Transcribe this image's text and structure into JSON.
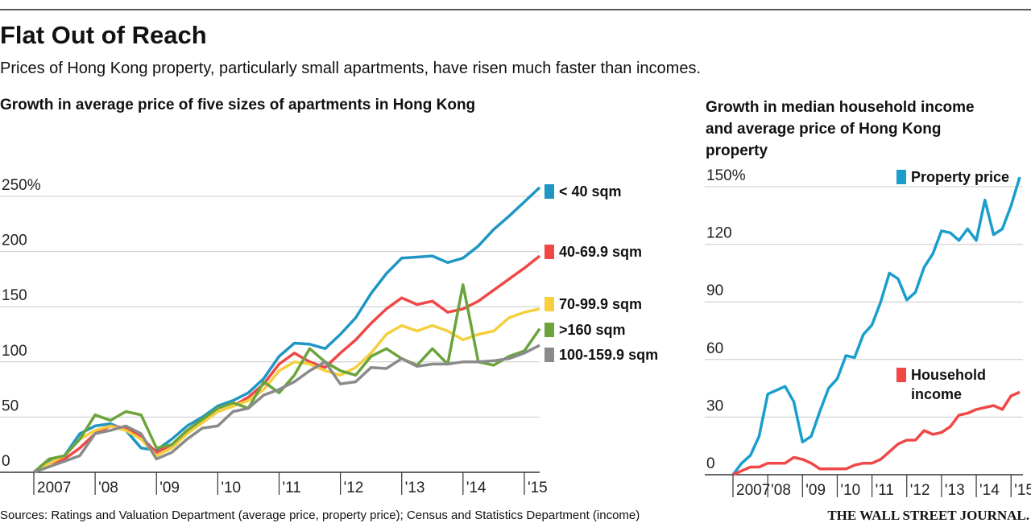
{
  "header": {
    "title": "Flat Out of Reach",
    "subtitle": "Prices of Hong Kong property, particularly small apartments, have risen much faster than incomes."
  },
  "footer": {
    "source": "Sources: Ratings and Valuation Department (average price, property price); Census and Statistics Department (income)",
    "credit": "THE WALL STREET JOURNAL."
  },
  "chart_data": [
    {
      "type": "line",
      "title": "Growth in average price of five sizes of apartments in Hong Kong",
      "x": [
        2007,
        2007.25,
        2007.5,
        2007.75,
        2008,
        2008.25,
        2008.5,
        2008.75,
        2009,
        2009.25,
        2009.5,
        2009.75,
        2010,
        2010.25,
        2010.5,
        2010.75,
        2011,
        2011.25,
        2011.5,
        2011.75,
        2012,
        2012.25,
        2012.5,
        2012.75,
        2013,
        2013.25,
        2013.5,
        2013.75,
        2014,
        2014.25,
        2014.5,
        2014.75,
        2015,
        2015.25
      ],
      "xlim": [
        2007,
        2015.25
      ],
      "xticks": [
        {
          "value": 2007,
          "label": "2007"
        },
        {
          "value": 2008,
          "label": "'08"
        },
        {
          "value": 2009,
          "label": "'09"
        },
        {
          "value": 2010,
          "label": "'10"
        },
        {
          "value": 2011,
          "label": "'11"
        },
        {
          "value": 2012,
          "label": "'12"
        },
        {
          "value": 2013,
          "label": "'13"
        },
        {
          "value": 2014,
          "label": "'14"
        },
        {
          "value": 2015,
          "label": "'15"
        }
      ],
      "ylim": [
        0,
        250
      ],
      "yticks": [
        0,
        50,
        100,
        150,
        200,
        {
          "value": 250,
          "label": "250%"
        }
      ],
      "grid": true,
      "series": [
        {
          "name": "< 40 sqm",
          "color": "#1f96c3",
          "values": [
            0,
            10,
            15,
            35,
            42,
            44,
            38,
            22,
            20,
            30,
            42,
            50,
            60,
            65,
            72,
            85,
            105,
            117,
            116,
            112,
            125,
            140,
            162,
            180,
            194,
            195,
            196,
            190,
            194,
            205,
            220,
            232,
            245,
            258
          ]
        },
        {
          "name": "40-69.9 sqm",
          "color": "#f04848",
          "values": [
            0,
            8,
            12,
            22,
            35,
            42,
            40,
            32,
            18,
            25,
            38,
            45,
            55,
            60,
            68,
            80,
            98,
            108,
            100,
            95,
            108,
            120,
            135,
            148,
            158,
            152,
            155,
            145,
            148,
            155,
            165,
            175,
            185,
            196
          ]
        },
        {
          "name": "70-99.9 sqm",
          "color": "#f5cf3c",
          "values": [
            0,
            8,
            15,
            30,
            38,
            42,
            38,
            30,
            15,
            22,
            35,
            45,
            55,
            60,
            65,
            75,
            92,
            100,
            98,
            92,
            88,
            95,
            108,
            125,
            133,
            128,
            133,
            128,
            120,
            125,
            128,
            140,
            145,
            148
          ]
        },
        {
          "name": ">160 sqm",
          "color": "#6ca43c",
          "values": [
            0,
            12,
            15,
            30,
            52,
            47,
            55,
            52,
            22,
            25,
            38,
            48,
            58,
            63,
            58,
            82,
            72,
            88,
            112,
            100,
            92,
            88,
            105,
            112,
            103,
            97,
            112,
            98,
            170,
            100,
            97,
            105,
            110,
            130
          ]
        },
        {
          "name": "100-159.9 sqm",
          "color": "#8a8a8a",
          "values": [
            0,
            5,
            10,
            15,
            35,
            38,
            42,
            35,
            12,
            18,
            30,
            40,
            42,
            55,
            58,
            70,
            75,
            82,
            92,
            100,
            80,
            82,
            95,
            94,
            103,
            96,
            98,
            98,
            100,
            100,
            101,
            103,
            108,
            115
          ]
        }
      ]
    },
    {
      "type": "line",
      "title": "Growth in median household income and average price of Hong Kong property",
      "x": [
        2007,
        2007.25,
        2007.5,
        2007.75,
        2008,
        2008.25,
        2008.5,
        2008.75,
        2009,
        2009.25,
        2009.5,
        2009.75,
        2010,
        2010.25,
        2010.5,
        2010.75,
        2011,
        2011.25,
        2011.5,
        2011.75,
        2012,
        2012.25,
        2012.5,
        2012.75,
        2013,
        2013.25,
        2013.5,
        2013.75,
        2014,
        2014.25,
        2014.5,
        2014.75,
        2015,
        2015.25
      ],
      "xlim": [
        2007,
        2015.25
      ],
      "xticks": [
        {
          "value": 2007,
          "label": "2007"
        },
        {
          "value": 2008,
          "label": "'08"
        },
        {
          "value": 2009,
          "label": "'09"
        },
        {
          "value": 2010,
          "label": "'10"
        },
        {
          "value": 2011,
          "label": "'11"
        },
        {
          "value": 2012,
          "label": "'12"
        },
        {
          "value": 2013,
          "label": "'13"
        },
        {
          "value": 2014,
          "label": "'14"
        },
        {
          "value": 2015,
          "label": "'15"
        }
      ],
      "ylim": [
        0,
        150
      ],
      "yticks": [
        0,
        30,
        60,
        90,
        120,
        {
          "value": 150,
          "label": "150%"
        }
      ],
      "grid": true,
      "series": [
        {
          "name": "Property price",
          "color": "#1a9fcc",
          "values": [
            0,
            6,
            10,
            20,
            42,
            44,
            46,
            38,
            17,
            20,
            33,
            45,
            50,
            62,
            61,
            73,
            78,
            90,
            105,
            102,
            91,
            95,
            108,
            115,
            127,
            126,
            122,
            128,
            122,
            143,
            125,
            128,
            140,
            155
          ]
        },
        {
          "name": "Household income",
          "color": "#f04848",
          "values": [
            0,
            2,
            4,
            4,
            6,
            6,
            6,
            9,
            8,
            6,
            3,
            3,
            3,
            3,
            5,
            6,
            6,
            8,
            12,
            16,
            18,
            18,
            23,
            21,
            22,
            25,
            31,
            32,
            34,
            35,
            36,
            34,
            41,
            43
          ]
        }
      ]
    }
  ]
}
